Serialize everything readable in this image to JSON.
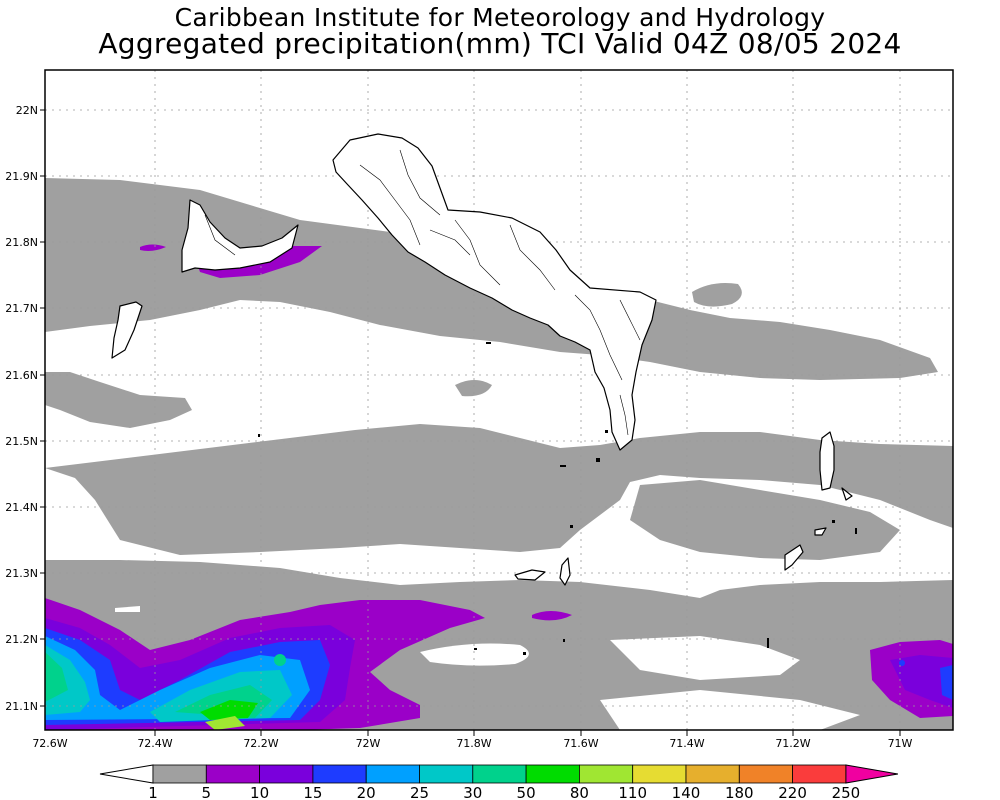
{
  "header": {
    "title_line1": "Caribbean Institute for Meteorology and Hydrology",
    "title_line2": "Aggregated precipitation(mm) TCI Valid 04Z 08/05 2024"
  },
  "map": {
    "lon_ticks": [
      "72.6W",
      "72.4W",
      "72.2W",
      "72W",
      "71.8W",
      "71.6W",
      "71.4W",
      "71.2W",
      "71W"
    ],
    "lat_ticks": [
      "22N",
      "21.9N",
      "21.8N",
      "21.7N",
      "21.6N",
      "21.5N",
      "21.4N",
      "21.3N",
      "21.2N",
      "21.1N"
    ],
    "extent": {
      "lon": [
        -72.6,
        -70.9
      ],
      "lat": [
        21.065,
        22.06
      ]
    },
    "region": "Turks and Caicos Islands"
  },
  "colorbar": {
    "labels": [
      "1",
      "5",
      "10",
      "15",
      "20",
      "25",
      "30",
      "50",
      "80",
      "110",
      "140",
      "180",
      "220",
      "250"
    ],
    "colors": [
      "#a0a0a0",
      "#9b00c8",
      "#7a00dc",
      "#1e3cff",
      "#00a0ff",
      "#00c8c8",
      "#00d28c",
      "#00dc00",
      "#a0e632",
      "#e6dc32",
      "#e6af2d",
      "#f08228",
      "#fa3c3c",
      "#f000a0"
    ],
    "under_color": "#ffffff"
  }
}
